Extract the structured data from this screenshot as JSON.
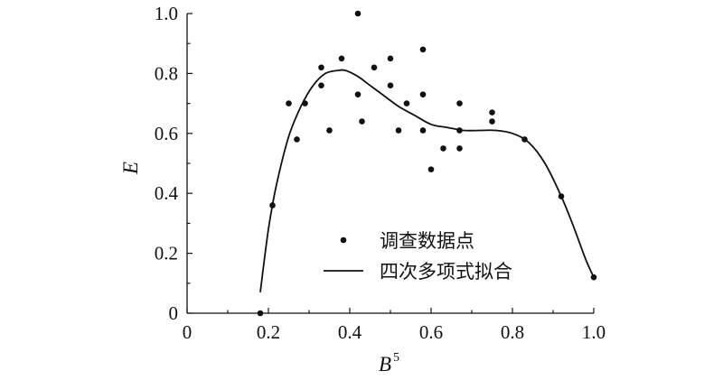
{
  "chart_data": {
    "type": "scatter",
    "xlabel": "B",
    "xlabel_superscript": "5",
    "ylabel": "E",
    "xlim": [
      0,
      1.0
    ],
    "ylim": [
      0,
      1.0
    ],
    "xticks": [
      "0",
      "0.2",
      "0.4",
      "0.6",
      "0.8",
      "1.0"
    ],
    "yticks": [
      "0",
      "0.2",
      "0.4",
      "0.6",
      "0.8",
      "1.0"
    ],
    "grid": false,
    "legend_position": "bottom-right",
    "series": [
      {
        "name": "调查数据点",
        "kind": "points",
        "x": [
          0.18,
          0.21,
          0.25,
          0.27,
          0.29,
          0.33,
          0.33,
          0.35,
          0.38,
          0.42,
          0.42,
          0.43,
          0.46,
          0.5,
          0.5,
          0.52,
          0.54,
          0.58,
          0.58,
          0.58,
          0.6,
          0.63,
          0.67,
          0.67,
          0.67,
          0.75,
          0.75,
          0.83,
          0.92,
          1.0
        ],
        "y": [
          0.0,
          0.36,
          0.7,
          0.58,
          0.7,
          0.82,
          0.76,
          0.61,
          0.85,
          1.0,
          0.73,
          0.64,
          0.82,
          0.85,
          0.76,
          0.61,
          0.7,
          0.88,
          0.73,
          0.61,
          0.48,
          0.55,
          0.7,
          0.61,
          0.55,
          0.67,
          0.64,
          0.58,
          0.39,
          0.12
        ]
      },
      {
        "name": "四次多项式拟合",
        "kind": "curve",
        "x": [
          0.18,
          0.2,
          0.22,
          0.25,
          0.28,
          0.31,
          0.34,
          0.37,
          0.39,
          0.42,
          0.45,
          0.48,
          0.52,
          0.56,
          0.6,
          0.64,
          0.68,
          0.72,
          0.76,
          0.8,
          0.84,
          0.88,
          0.92,
          0.95,
          0.98,
          1.0
        ],
        "y": [
          0.07,
          0.28,
          0.43,
          0.59,
          0.69,
          0.76,
          0.8,
          0.81,
          0.81,
          0.79,
          0.76,
          0.73,
          0.69,
          0.66,
          0.63,
          0.62,
          0.61,
          0.61,
          0.61,
          0.6,
          0.57,
          0.5,
          0.39,
          0.29,
          0.18,
          0.12
        ]
      }
    ]
  }
}
